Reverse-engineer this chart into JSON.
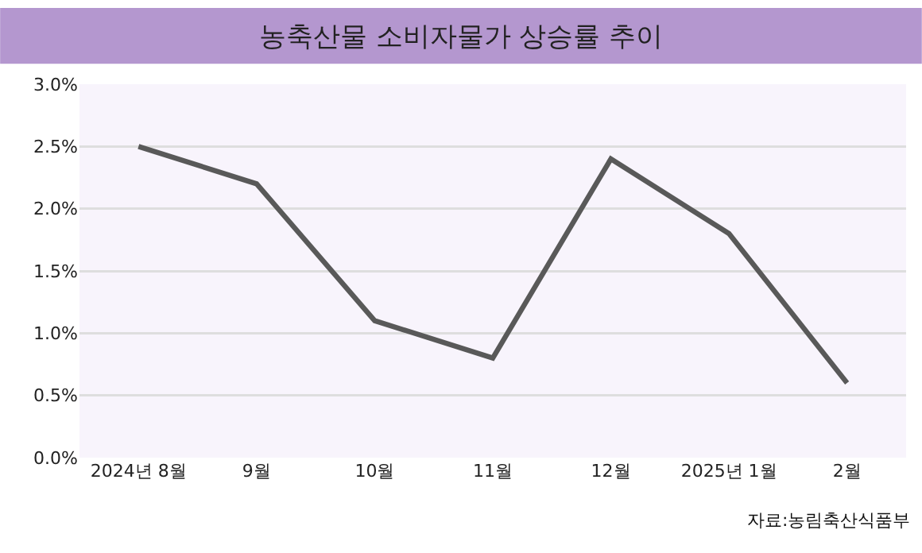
{
  "chart_data": {
    "type": "line",
    "title": "농축산물 소비자물가 상승률 추이",
    "categories": [
      "2024년 8월",
      "9월",
      "10월",
      "11월",
      "12월",
      "2025년 1월",
      "2월"
    ],
    "series": [
      {
        "color": "#595959",
        "values": [
          2.5,
          2.2,
          1.1,
          0.8,
          2.4,
          1.8,
          0.6
        ]
      }
    ],
    "ylim": [
      0,
      3
    ],
    "yticks": [
      {
        "value": 0,
        "label": "0.0%"
      },
      {
        "value": 0.5,
        "label": "0.5%"
      },
      {
        "value": 1,
        "label": "1.0%"
      },
      {
        "value": 1.5,
        "label": "1.5%"
      },
      {
        "value": 2,
        "label": "2.0%"
      },
      {
        "value": 2.5,
        "label": "2.5%"
      },
      {
        "value": 3,
        "label": "3.0%"
      }
    ],
    "grid": "y",
    "marker": "none",
    "line_style": "solid",
    "annotations": [
      "자료:농림축산식품부"
    ]
  }
}
